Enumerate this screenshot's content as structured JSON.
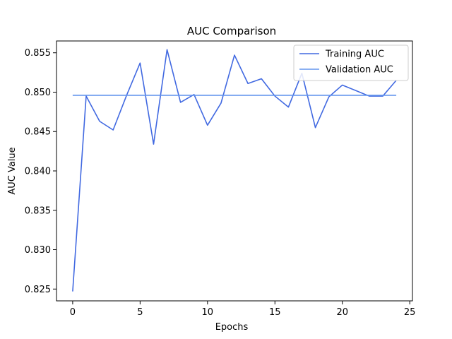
{
  "chart_data": {
    "type": "line",
    "title": "AUC Comparison",
    "xlabel": "Epochs",
    "ylabel": "AUC Value",
    "xlim": [
      -1.2,
      25.2
    ],
    "ylim": [
      0.8235,
      0.8565
    ],
    "xticks": [
      0,
      5,
      10,
      15,
      20,
      25
    ],
    "yticks": [
      0.825,
      0.83,
      0.835,
      0.84,
      0.845,
      0.85,
      0.855
    ],
    "ytick_labels": [
      "0.825",
      "0.830",
      "0.835",
      "0.840",
      "0.845",
      "0.850",
      "0.855"
    ],
    "grid": false,
    "legend_position": "top-right",
    "x": [
      0,
      1,
      2,
      3,
      4,
      5,
      6,
      7,
      8,
      9,
      10,
      11,
      12,
      13,
      14,
      15,
      16,
      17,
      18,
      19,
      20,
      21,
      22,
      23,
      24
    ],
    "series": [
      {
        "name": "Training AUC",
        "color": "#4169E1",
        "values": [
          0.8247,
          0.8495,
          0.8463,
          0.8452,
          0.8496,
          0.8537,
          0.8434,
          0.8554,
          0.8487,
          0.8497,
          0.8458,
          0.8486,
          0.8547,
          0.8511,
          0.8517,
          0.8495,
          0.8481,
          0.8524,
          0.8455,
          0.8494,
          0.8509,
          0.8502,
          0.8495,
          0.8495,
          0.8515
        ]
      },
      {
        "name": "Validation AUC",
        "color": "#6495ED",
        "values": [
          0.8496,
          0.8496,
          0.8496,
          0.8496,
          0.8496,
          0.8496,
          0.8496,
          0.8496,
          0.8496,
          0.8496,
          0.8496,
          0.8496,
          0.8496,
          0.8496,
          0.8496,
          0.8496,
          0.8496,
          0.8496,
          0.8496,
          0.8496,
          0.8496,
          0.8496,
          0.8496,
          0.8496,
          0.8496
        ]
      }
    ]
  }
}
